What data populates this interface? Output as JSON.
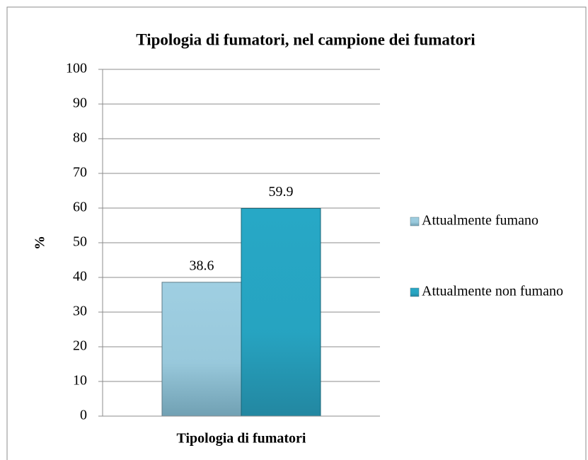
{
  "chart_data": {
    "type": "bar",
    "title": "Tipologia di fumatori, nel campione dei fumatori",
    "categories": [
      "Tipologia di fumatori"
    ],
    "series": [
      {
        "name": "Attualmente fumano",
        "color": "#9fcfe2",
        "values": [
          38.6
        ]
      },
      {
        "name": "Attualmente non fumano",
        "color": "#27a8c6",
        "values": [
          59.9
        ]
      }
    ],
    "ylabel": "%",
    "ylim": [
      0,
      100
    ],
    "yticks": [
      0,
      10,
      20,
      30,
      40,
      50,
      60,
      70,
      80,
      90,
      100
    ],
    "grid": true,
    "legend": "right"
  }
}
